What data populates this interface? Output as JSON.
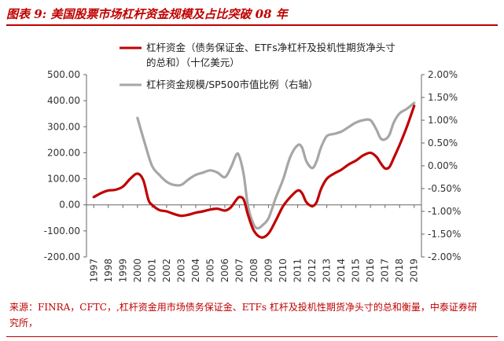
{
  "figure": {
    "title": "图表 9:  美国股票市场杠杆资金规模及占比突破 08 年",
    "source": "来源：FINRA，CFTC，,杠杆资金用市场债务保证金、ETFs 杠杆及投机性期货净头寸的总和衡量，中泰证券研究所，"
  },
  "chart_data": {
    "type": "line",
    "x": [
      1997,
      1998,
      1999,
      2000,
      2001,
      2002,
      2003,
      2004,
      2005,
      2006,
      2007,
      2008,
      2009,
      2010,
      2011,
      2012,
      2013,
      2014,
      2015,
      2016,
      2017,
      2018,
      2019
    ],
    "x_tick_labels": [
      "1997",
      "1998",
      "1999",
      "2000",
      "2001",
      "2002",
      "2003",
      "2004",
      "2005",
      "2006",
      "2007",
      "2008",
      "2009",
      "2010",
      "2011",
      "2012",
      "2013",
      "2014",
      "2015",
      "2016",
      "2017",
      "2018",
      "2019"
    ],
    "series": [
      {
        "name": "杠杆资金（债务保证金、ETFs净杠杆及投机性期货净头寸的总和）（十亿美元）",
        "legend_line1": "杠杆资金（债务保证金、ETFs净杠杆及投机性期货净头寸",
        "legend_line2": "的总和）（十亿美元）",
        "axis": "left",
        "color": "#c00000",
        "points": [
          [
            1997,
            30
          ],
          [
            1997.5,
            45
          ],
          [
            1998,
            55
          ],
          [
            1998.5,
            58
          ],
          [
            1999,
            70
          ],
          [
            1999.5,
            100
          ],
          [
            2000,
            120
          ],
          [
            2000.4,
            95
          ],
          [
            2000.75,
            20
          ],
          [
            2001,
            0
          ],
          [
            2001.5,
            -20
          ],
          [
            2002,
            -25
          ],
          [
            2002.5,
            -35
          ],
          [
            2003,
            -42
          ],
          [
            2003.5,
            -38
          ],
          [
            2004,
            -30
          ],
          [
            2004.5,
            -25
          ],
          [
            2005,
            -18
          ],
          [
            2005.5,
            -15
          ],
          [
            2006,
            -22
          ],
          [
            2006.4,
            -10
          ],
          [
            2006.8,
            20
          ],
          [
            2007,
            30
          ],
          [
            2007.3,
            20
          ],
          [
            2007.6,
            -40
          ],
          [
            2008,
            -100
          ],
          [
            2008.5,
            -125
          ],
          [
            2009,
            -110
          ],
          [
            2009.5,
            -60
          ],
          [
            2010,
            -5
          ],
          [
            2010.5,
            30
          ],
          [
            2011,
            55
          ],
          [
            2011.3,
            45
          ],
          [
            2011.6,
            10
          ],
          [
            2012,
            -5
          ],
          [
            2012.3,
            10
          ],
          [
            2012.6,
            60
          ],
          [
            2013,
            100
          ],
          [
            2013.5,
            120
          ],
          [
            2014,
            135
          ],
          [
            2014.5,
            155
          ],
          [
            2015,
            170
          ],
          [
            2015.5,
            190
          ],
          [
            2016,
            200
          ],
          [
            2016.4,
            185
          ],
          [
            2016.7,
            160
          ],
          [
            2017,
            140
          ],
          [
            2017.3,
            145
          ],
          [
            2017.6,
            180
          ],
          [
            2018,
            230
          ],
          [
            2018.5,
            300
          ],
          [
            2019,
            380
          ]
        ]
      },
      {
        "name": "杠杆资金规模/SP500市值比例（右轴）",
        "axis": "right",
        "color": "#a6a6a6",
        "points": [
          [
            2000,
            1.05
          ],
          [
            2000.5,
            0.5
          ],
          [
            2001,
            0.0
          ],
          [
            2001.5,
            -0.2
          ],
          [
            2002,
            -0.35
          ],
          [
            2002.5,
            -0.42
          ],
          [
            2003,
            -0.42
          ],
          [
            2003.5,
            -0.3
          ],
          [
            2004,
            -0.2
          ],
          [
            2004.5,
            -0.15
          ],
          [
            2005,
            -0.1
          ],
          [
            2005.5,
            -0.15
          ],
          [
            2006,
            -0.25
          ],
          [
            2006.4,
            -0.05
          ],
          [
            2006.8,
            0.25
          ],
          [
            2007,
            0.2
          ],
          [
            2007.3,
            -0.2
          ],
          [
            2007.6,
            -0.9
          ],
          [
            2008,
            -1.3
          ],
          [
            2008.3,
            -1.37
          ],
          [
            2008.6,
            -1.3
          ],
          [
            2009,
            -1.15
          ],
          [
            2009.5,
            -0.7
          ],
          [
            2010,
            -0.3
          ],
          [
            2010.5,
            0.2
          ],
          [
            2011,
            0.45
          ],
          [
            2011.3,
            0.4
          ],
          [
            2011.6,
            0.1
          ],
          [
            2012,
            -0.05
          ],
          [
            2012.3,
            0.1
          ],
          [
            2012.6,
            0.4
          ],
          [
            2013,
            0.65
          ],
          [
            2013.5,
            0.7
          ],
          [
            2014,
            0.75
          ],
          [
            2014.5,
            0.85
          ],
          [
            2015,
            0.95
          ],
          [
            2015.5,
            1.0
          ],
          [
            2016,
            1.0
          ],
          [
            2016.4,
            0.8
          ],
          [
            2016.7,
            0.6
          ],
          [
            2017,
            0.58
          ],
          [
            2017.3,
            0.68
          ],
          [
            2017.6,
            0.95
          ],
          [
            2018,
            1.15
          ],
          [
            2018.5,
            1.25
          ],
          [
            2019,
            1.38
          ]
        ]
      }
    ],
    "y_left": {
      "range": [
        -200,
        500
      ],
      "ticks": [
        -200,
        -100,
        0,
        100,
        200,
        300,
        400,
        500
      ],
      "tick_labels": [
        "-200.00",
        "-100.00",
        "0.00",
        "100.00",
        "200.00",
        "300.00",
        "400.00",
        "500.00"
      ]
    },
    "y_right": {
      "range": [
        -2,
        2
      ],
      "ticks": [
        -2,
        -1.5,
        -1,
        -0.5,
        0,
        0.5,
        1,
        1.5,
        2
      ],
      "tick_labels": [
        "-2.00%",
        "-1.50%",
        "-1.00%",
        "-0.50%",
        "0.00%",
        "0.50%",
        "1.00%",
        "1.50%",
        "2.00%"
      ]
    },
    "grid": false,
    "legend_position": "top-left"
  }
}
